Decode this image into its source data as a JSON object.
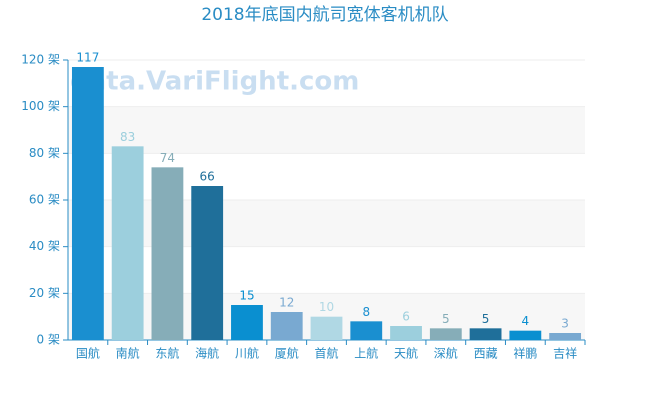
{
  "chart_data": {
    "type": "bar",
    "title": "2018年底国内航司宽体客机机队",
    "watermark": "data.VariFlight.com",
    "categories": [
      "国航",
      "南航",
      "东航",
      "海航",
      "川航",
      "厦航",
      "首航",
      "上航",
      "天航",
      "深航",
      "西藏",
      "祥鹏",
      "吉祥"
    ],
    "values": [
      117,
      83,
      74,
      66,
      15,
      12,
      10,
      8,
      6,
      5,
      5,
      4,
      3
    ],
    "colors": [
      "#1a8fd0",
      "#9ccfdd",
      "#86adb8",
      "#1f6f9a",
      "#0a8fd0",
      "#79a9d1",
      "#b0d8e4",
      "#1a8fd0",
      "#9ccfdd",
      "#86adb8",
      "#1f6f9a",
      "#0a8fd0",
      "#79a9d1"
    ],
    "ylim": [
      0,
      120
    ],
    "yticks": [
      {
        "value": 0,
        "label": "0 架"
      },
      {
        "value": 20,
        "label": "20 架"
      },
      {
        "value": 40,
        "label": "40 架"
      },
      {
        "value": 60,
        "label": "60 架"
      },
      {
        "value": 80,
        "label": "80 架"
      },
      {
        "value": 100,
        "label": "100 架"
      },
      {
        "value": 120,
        "label": "120 架"
      }
    ],
    "grid": true
  }
}
